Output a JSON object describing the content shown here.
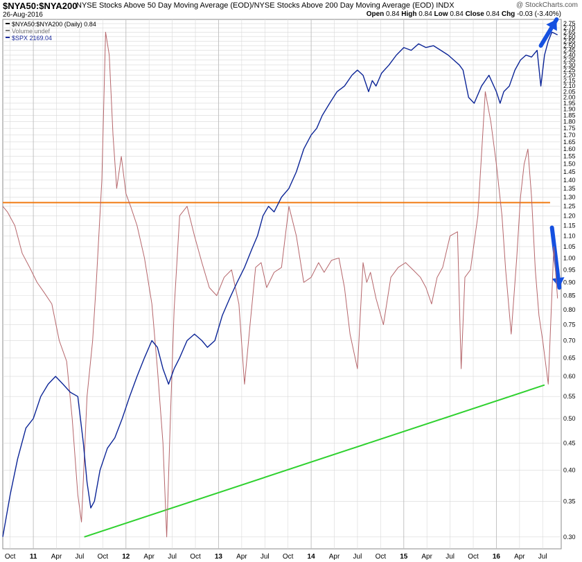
{
  "header": {
    "symbol": "$NYA50:$NYA200",
    "description": "NYSE Stocks Above 50 Day Moving Average (EOD)/NYSE Stocks Above 200 Day Moving Average (EOD)",
    "exchange": "INDX",
    "date": "26-Aug-2016",
    "watermark": "@ StockCharts.com",
    "open_label": "Open",
    "open": "0.84",
    "high_label": "High",
    "high": "0.84",
    "low_label": "Low",
    "low": "0.84",
    "close_label": "Close",
    "close": "0.84",
    "chg_label": "Chg",
    "chg": "-0.03 (-3.40%)"
  },
  "legend": [
    {
      "text": "$NYA50:$NYA200 (Daily) 0.84",
      "color": "#000000"
    },
    {
      "text": "Volume undef",
      "color": "#777777"
    },
    {
      "text": "$SPX 2169.04",
      "color": "#1a2a9c"
    }
  ],
  "colors": {
    "ratio": "#b5656a",
    "spx": "#0b2496",
    "orange_line": "#f07a10",
    "green_line": "#2fd12f",
    "arrow": "#1550e0",
    "grid": "#d8d8d8"
  },
  "chart_data": {
    "type": "line",
    "x_tick_labels": [
      "Oct",
      "11",
      "Apr",
      "Jul",
      "Oct",
      "12",
      "Apr",
      "Jul",
      "Oct",
      "13",
      "Apr",
      "Jul",
      "Oct",
      "14",
      "Apr",
      "Jul",
      "Oct",
      "15",
      "Apr",
      "Jul",
      "Oct",
      "16",
      "Apr",
      "Jul"
    ],
    "x_tick_positions": [
      2010.75,
      2011.0,
      2011.25,
      2011.5,
      2011.75,
      2012.0,
      2012.25,
      2012.5,
      2012.75,
      2013.0,
      2013.25,
      2013.5,
      2013.75,
      2014.0,
      2014.25,
      2014.5,
      2014.75,
      2015.0,
      2015.25,
      2015.5,
      2015.75,
      2016.0,
      2016.25,
      2016.5
    ],
    "xlim": [
      2010.67,
      2016.7
    ],
    "y_scale": "log",
    "ylim": [
      0.285,
      2.8
    ],
    "y_ticks": [
      "2.75",
      "2.70",
      "2.65",
      "2.60",
      "2.55",
      "2.50",
      "2.45",
      "2.40",
      "2.35",
      "2.30",
      "2.25",
      "2.20",
      "2.15",
      "2.10",
      "2.05",
      "2.00",
      "1.95",
      "1.90",
      "1.85",
      "1.80",
      "1.75",
      "1.70",
      "1.65",
      "1.60",
      "1.55",
      "1.50",
      "1.45",
      "1.40",
      "1.35",
      "1.30",
      "1.25",
      "1.20",
      "1.15",
      "1.10",
      "1.05",
      "1.00",
      "0.95",
      "0.90",
      "0.85",
      "0.80",
      "0.75",
      "0.70",
      "0.65",
      "0.60",
      "0.55",
      "0.50",
      "0.45",
      "0.40",
      "0.35",
      "0.30"
    ],
    "series": [
      {
        "name": "$NYA50:$NYA200",
        "x": [
          2010.67,
          2010.72,
          2010.8,
          2010.88,
          2010.96,
          2011.04,
          2011.12,
          2011.2,
          2011.28,
          2011.36,
          2011.42,
          2011.48,
          2011.52,
          2011.58,
          2011.64,
          2011.68,
          2011.74,
          2011.78,
          2011.82,
          2011.86,
          2011.9,
          2011.95,
          2012.0,
          2012.05,
          2012.12,
          2012.2,
          2012.28,
          2012.34,
          2012.4,
          2012.44,
          2012.48,
          2012.52,
          2012.58,
          2012.66,
          2012.74,
          2012.82,
          2012.9,
          2012.98,
          2013.06,
          2013.14,
          2013.22,
          2013.28,
          2013.34,
          2013.4,
          2013.46,
          2013.52,
          2013.6,
          2013.68,
          2013.76,
          2013.84,
          2013.92,
          2014.0,
          2014.08,
          2014.14,
          2014.22,
          2014.3,
          2014.36,
          2014.42,
          2014.5,
          2014.56,
          2014.6,
          2014.64,
          2014.7,
          2014.78,
          2014.86,
          2014.94,
          2015.02,
          2015.1,
          2015.18,
          2015.24,
          2015.3,
          2015.36,
          2015.42,
          2015.5,
          2015.58,
          2015.62,
          2015.66,
          2015.72,
          2015.8,
          2015.88,
          2015.94,
          2016.0,
          2016.06,
          2016.1,
          2016.16,
          2016.22,
          2016.26,
          2016.3,
          2016.34,
          2016.38,
          2016.42,
          2016.46,
          2016.5,
          2016.56,
          2016.62,
          2016.66
        ],
        "y": [
          1.25,
          1.22,
          1.15,
          1.02,
          0.96,
          0.9,
          0.86,
          0.82,
          0.7,
          0.64,
          0.5,
          0.36,
          0.32,
          0.55,
          0.7,
          0.9,
          1.4,
          2.65,
          2.4,
          1.7,
          1.35,
          1.55,
          1.32,
          1.25,
          1.15,
          1.0,
          0.82,
          0.62,
          0.45,
          0.3,
          0.5,
          0.8,
          1.2,
          1.25,
          1.1,
          0.98,
          0.88,
          0.85,
          0.92,
          0.95,
          0.82,
          0.58,
          0.75,
          0.96,
          0.98,
          0.88,
          0.94,
          0.96,
          1.25,
          1.1,
          0.9,
          0.92,
          0.98,
          0.94,
          0.99,
          1.0,
          0.88,
          0.72,
          0.62,
          0.98,
          0.9,
          0.94,
          0.84,
          0.75,
          0.92,
          0.96,
          0.98,
          0.95,
          0.92,
          0.88,
          0.82,
          0.92,
          0.96,
          1.1,
          1.12,
          0.62,
          0.92,
          0.95,
          1.2,
          2.05,
          1.8,
          1.5,
          1.2,
          0.95,
          0.72,
          1.0,
          1.3,
          1.5,
          1.6,
          1.3,
          0.95,
          0.78,
          0.7,
          0.58,
          1.05,
          0.84
        ]
      },
      {
        "name": "$SPX",
        "x": [
          2010.67,
          2010.75,
          2010.83,
          2010.92,
          2011.0,
          2011.08,
          2011.16,
          2011.24,
          2011.32,
          2011.4,
          2011.48,
          2011.54,
          2011.58,
          2011.62,
          2011.66,
          2011.72,
          2011.8,
          2011.88,
          2011.96,
          2012.04,
          2012.12,
          2012.2,
          2012.28,
          2012.34,
          2012.4,
          2012.46,
          2012.52,
          2012.58,
          2012.66,
          2012.74,
          2012.82,
          2012.88,
          2012.96,
          2013.04,
          2013.12,
          2013.2,
          2013.28,
          2013.36,
          2013.42,
          2013.48,
          2013.54,
          2013.6,
          2013.68,
          2013.76,
          2013.84,
          2013.92,
          2014.0,
          2014.06,
          2014.12,
          2014.2,
          2014.28,
          2014.36,
          2014.44,
          2014.5,
          2014.56,
          2014.62,
          2014.66,
          2014.7,
          2014.76,
          2014.84,
          2014.92,
          2015.0,
          2015.08,
          2015.16,
          2015.24,
          2015.32,
          2015.4,
          2015.48,
          2015.54,
          2015.6,
          2015.64,
          2015.7,
          2015.76,
          2015.84,
          2015.92,
          2016.0,
          2016.04,
          2016.08,
          2016.14,
          2016.2,
          2016.26,
          2016.32,
          2016.38,
          2016.44,
          2016.48,
          2016.52,
          2016.56,
          2016.6,
          2016.66
        ],
        "y": [
          0.3,
          0.36,
          0.42,
          0.48,
          0.5,
          0.55,
          0.58,
          0.6,
          0.58,
          0.56,
          0.55,
          0.45,
          0.38,
          0.34,
          0.35,
          0.4,
          0.44,
          0.46,
          0.5,
          0.55,
          0.6,
          0.65,
          0.7,
          0.68,
          0.62,
          0.58,
          0.62,
          0.65,
          0.7,
          0.72,
          0.7,
          0.68,
          0.7,
          0.78,
          0.84,
          0.9,
          0.96,
          1.04,
          1.1,
          1.2,
          1.25,
          1.22,
          1.3,
          1.35,
          1.45,
          1.6,
          1.7,
          1.75,
          1.85,
          1.95,
          2.05,
          2.1,
          2.2,
          2.25,
          2.2,
          2.05,
          2.15,
          2.1,
          2.22,
          2.3,
          2.4,
          2.48,
          2.45,
          2.52,
          2.48,
          2.5,
          2.45,
          2.4,
          2.35,
          2.3,
          2.25,
          2.0,
          1.95,
          2.1,
          2.2,
          2.05,
          1.95,
          2.05,
          2.1,
          2.25,
          2.35,
          2.4,
          2.38,
          2.45,
          2.1,
          2.4,
          2.55,
          2.65,
          2.62
        ]
      }
    ],
    "annotations": [
      {
        "type": "trendline",
        "color": "orange",
        "x": [
          2010.67,
          2016.58
        ],
        "y": [
          1.27,
          1.27
        ]
      },
      {
        "type": "trendline",
        "color": "green",
        "x": [
          2011.55,
          2016.52
        ],
        "y": [
          0.3,
          0.578
        ]
      },
      {
        "type": "arrow",
        "color": "blue",
        "x": [
          2016.48,
          2016.65
        ],
        "y": [
          2.5,
          2.8
        ]
      },
      {
        "type": "arrow",
        "color": "blue",
        "x": [
          2016.6,
          2016.68
        ],
        "y": [
          1.14,
          0.88
        ]
      }
    ]
  }
}
